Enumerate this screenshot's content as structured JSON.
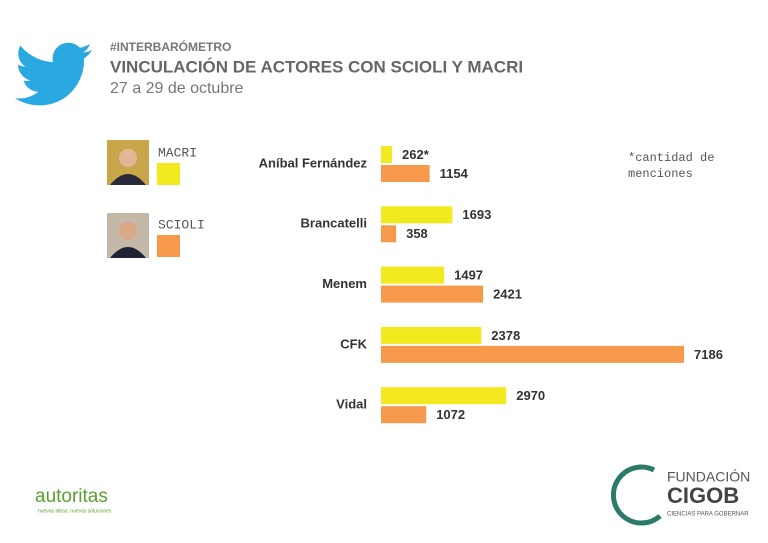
{
  "header": {
    "hashtag": "#INTERBARÓMETRO",
    "title": "VINCULACIÓN DE ACTORES CON SCIOLI Y MACRI",
    "subtitle": "27 a 29 de octubre"
  },
  "chart_data": {
    "type": "bar",
    "orientation": "horizontal",
    "categories": [
      "Aníbal Fernández",
      "Brancatelli",
      "Menem",
      "CFK",
      "Vidal"
    ],
    "series": [
      {
        "name": "MACRI",
        "color": "#f2ea1f",
        "values": [
          262,
          1693,
          1497,
          2378,
          2970
        ],
        "value_labels": [
          "262*",
          "1693",
          "1497",
          "2378",
          "2970"
        ]
      },
      {
        "name": "SCIOLI",
        "color": "#f7994b",
        "values": [
          1154,
          358,
          2421,
          7186,
          1072
        ]
      }
    ],
    "note": "*cantidad de menciones"
  },
  "footer": {
    "left_logo": "autoritas",
    "left_tagline": "nuevas ideas, nuevas soluciones",
    "right_logo_top": "FUNDACIÓN",
    "right_logo_main": "CIGOB",
    "right_logo_tagline": "CIENCIAS PARA GOBERNAR"
  }
}
